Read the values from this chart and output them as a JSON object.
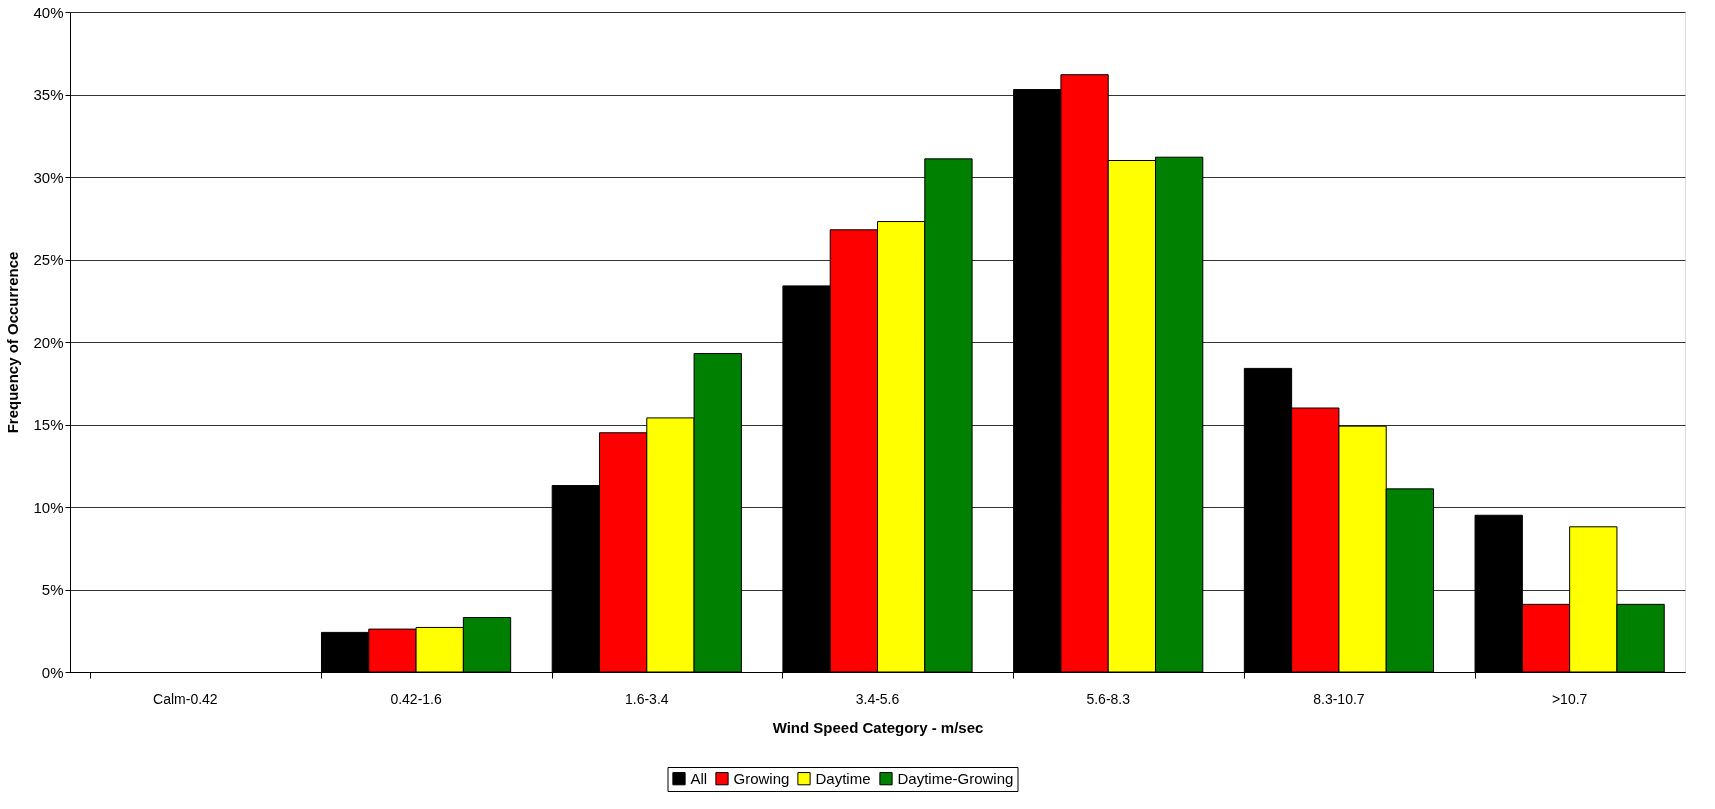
{
  "chart_data": {
    "type": "bar",
    "xlabel": "Wind Speed Category - m/sec",
    "ylabel": "Frequency of Occurrence",
    "categories": [
      "Calm-0.42",
      "0.42-1.6",
      "1.6-3.4",
      "3.4-5.6",
      "5.6-8.3",
      "8.3-10.7",
      ">10.7"
    ],
    "series": [
      {
        "name": "All",
        "color": "#000000",
        "values": [
          null,
          2.4,
          11.3,
          23.4,
          35.3,
          18.4,
          9.5
        ]
      },
      {
        "name": "Growing",
        "color": "#ff0000",
        "values": [
          null,
          2.6,
          14.5,
          26.8,
          36.2,
          16.0,
          4.1
        ]
      },
      {
        "name": "Daytime",
        "color": "#ffff00",
        "values": [
          null,
          2.7,
          15.4,
          27.3,
          31.0,
          14.9,
          8.8
        ]
      },
      {
        "name": "Daytime-Growing",
        "color": "#008000",
        "values": [
          null,
          3.3,
          19.3,
          31.1,
          31.2,
          11.1,
          4.1
        ]
      }
    ],
    "ylim": [
      0,
      40
    ],
    "yticks": [
      {
        "value": 0,
        "label": "0%"
      },
      {
        "value": 5,
        "label": "5%"
      },
      {
        "value": 10,
        "label": "10%"
      },
      {
        "value": 15,
        "label": "15%"
      },
      {
        "value": 20,
        "label": "20%"
      },
      {
        "value": 25,
        "label": "25%"
      },
      {
        "value": 30,
        "label": "30%"
      },
      {
        "value": 35,
        "label": "35%"
      },
      {
        "value": 40,
        "label": "40%"
      }
    ],
    "grid": "y",
    "legend": "bottom"
  }
}
